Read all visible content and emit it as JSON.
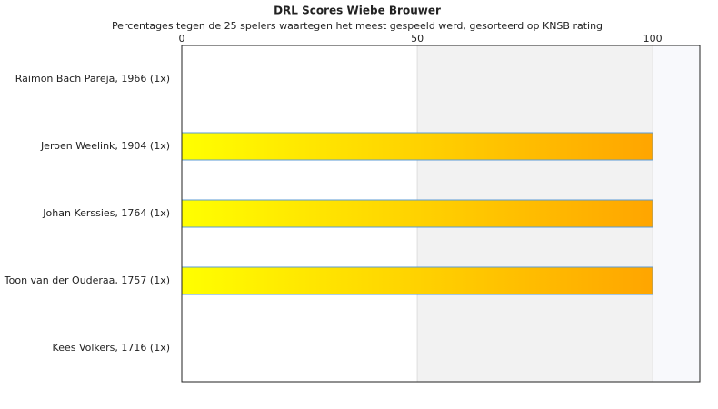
{
  "chart_data": {
    "type": "hbar",
    "title": "DRL Scores Wiebe Brouwer",
    "subtitle": "Percentages tegen de 25 spelers waartegen het meest gespeeld werd, gesorteerd op KNSB rating",
    "categories": [
      "Raimon Bach Pareja, 1966 (1x)",
      "Jeroen Weelink, 1904 (1x)",
      "Johan Kerssies, 1764 (1x)",
      "Toon van der Ouderaa, 1757 (1x)",
      "Kees Volkers, 1716 (1x)"
    ],
    "values": [
      0,
      100,
      100,
      100,
      0
    ],
    "gradient": [
      "#ffff00",
      "#ffa500"
    ],
    "bar_border": "#5b9bd5",
    "xlim": [
      0,
      110
    ],
    "xticks": [
      0,
      50,
      100
    ],
    "grid": true
  }
}
